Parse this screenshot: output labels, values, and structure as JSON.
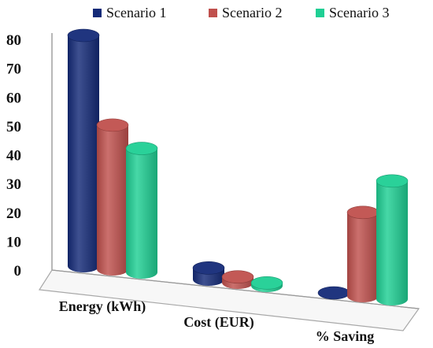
{
  "chart_data": {
    "type": "bar",
    "categories": [
      "Energy (kWh)",
      "Cost (EUR)",
      "% Saving"
    ],
    "series": [
      {
        "name": "Scenario 1",
        "color": "#142a78",
        "values": [
          80,
          4,
          0
        ]
      },
      {
        "name": "Scenario 2",
        "color": "#c0504d",
        "values": [
          50,
          2,
          29
        ]
      },
      {
        "name": "Scenario 3",
        "color": "#1fcf94",
        "values": [
          43,
          1,
          41
        ]
      }
    ],
    "yticks": [
      "0",
      "10",
      "20",
      "30",
      "40",
      "50",
      "60",
      "70",
      "80"
    ],
    "ylim": [
      0,
      80
    ],
    "legend_position": "top",
    "style": "3d-cylinder"
  }
}
